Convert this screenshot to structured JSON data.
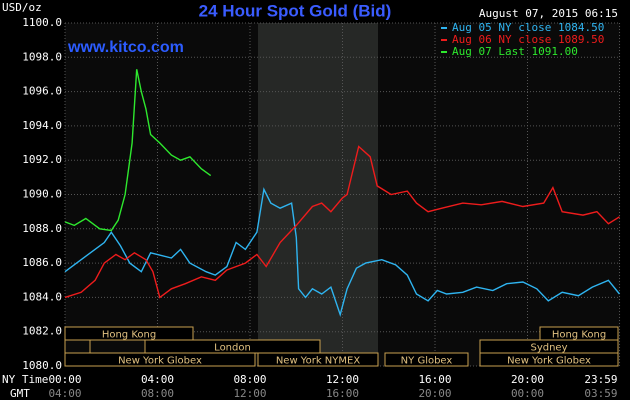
{
  "chart_data": {
    "type": "line",
    "title": "24 Hour Spot Gold (Bid)",
    "subtitle": "August 07, 2015 06:15",
    "ylabel": "USD/oz",
    "watermark": "www.kitco.com",
    "xlabel": "NY Time",
    "x2label": "GMT",
    "xlim": [
      0,
      24
    ],
    "xticks": [
      {
        "value": 0,
        "label": "00:00"
      },
      {
        "value": 4,
        "label": "04:00"
      },
      {
        "value": 8,
        "label": "08:00"
      },
      {
        "value": 12,
        "label": "12:00"
      },
      {
        "value": 16,
        "label": "16:00"
      },
      {
        "value": 20,
        "label": "20:00"
      },
      {
        "value": 23.98,
        "label": "23:59"
      }
    ],
    "x2ticks": [
      {
        "value": 0,
        "label": "04:00"
      },
      {
        "value": 4,
        "label": "08:00"
      },
      {
        "value": 8,
        "label": "12:00"
      },
      {
        "value": 12,
        "label": "16:00"
      },
      {
        "value": 16,
        "label": "20:00"
      },
      {
        "value": 20,
        "label": "00:00"
      },
      {
        "value": 23.98,
        "label": "03:59"
      }
    ],
    "ylim": [
      1080,
      1100
    ],
    "yticks": [
      {
        "value": 1080,
        "label": "1080.0"
      },
      {
        "value": 1082,
        "label": "1082.0"
      },
      {
        "value": 1084,
        "label": "1084.0"
      },
      {
        "value": 1086,
        "label": "1086.0"
      },
      {
        "value": 1088,
        "label": "1088.0"
      },
      {
        "value": 1090,
        "label": "1090.0"
      },
      {
        "value": 1092,
        "label": "1092.0"
      },
      {
        "value": 1094,
        "label": "1094.0"
      },
      {
        "value": 1096,
        "label": "1096.0"
      },
      {
        "value": 1098,
        "label": "1098.0"
      },
      {
        "value": 1100,
        "label": "1100.0"
      }
    ],
    "grid": true,
    "legend": "upper right",
    "sessions": [
      "Hong Kong",
      "Hong Kong",
      "London",
      "Sydney",
      "New York Globex",
      "New York NYMEX",
      "NY Globex",
      "New York Globex"
    ],
    "series": [
      {
        "name": "Aug 05 NY close 1084.50",
        "color": "#2fb4f0",
        "x": [
          0,
          1.1,
          1.7,
          2.0,
          2.4,
          2.8,
          3.3,
          3.7,
          4.6,
          5.0,
          5.4,
          6.1,
          6.5,
          7.0,
          7.4,
          7.8,
          8.3,
          8.6,
          8.9,
          9.3,
          9.8,
          10.0,
          10.1,
          10.4,
          10.7,
          11.1,
          11.5,
          11.9,
          12.2,
          12.6,
          13.0,
          13.7,
          14.3,
          14.8,
          15.2,
          15.7,
          16.1,
          16.5,
          17.2,
          17.8,
          18.5,
          19.1,
          19.8,
          20.4,
          20.9,
          21.5,
          22.2,
          22.8,
          23.5,
          23.98
        ],
        "values": [
          1085.5,
          1086.6,
          1087.2,
          1087.8,
          1087.0,
          1086.0,
          1085.5,
          1086.6,
          1086.3,
          1086.8,
          1086.0,
          1085.5,
          1085.3,
          1085.8,
          1087.2,
          1086.8,
          1087.8,
          1090.3,
          1089.5,
          1089.2,
          1089.5,
          1087.5,
          1084.5,
          1084.0,
          1084.5,
          1084.2,
          1084.6,
          1083.0,
          1084.5,
          1085.7,
          1086.0,
          1086.2,
          1085.9,
          1085.3,
          1084.2,
          1083.8,
          1084.4,
          1084.2,
          1084.3,
          1084.6,
          1084.4,
          1084.8,
          1084.9,
          1084.5,
          1083.8,
          1084.3,
          1084.1,
          1084.6,
          1085.0,
          1084.2
        ]
      },
      {
        "name": "Aug 06 NY close 1089.50",
        "color": "#ee1c1c",
        "x": [
          0,
          0.7,
          1.3,
          1.7,
          2.2,
          2.6,
          3.0,
          3.5,
          3.8,
          4.1,
          4.6,
          5.2,
          5.9,
          6.5,
          7.0,
          7.8,
          8.3,
          8.7,
          9.3,
          10.0,
          10.7,
          11.1,
          11.5,
          12.0,
          12.2,
          12.7,
          13.2,
          13.5,
          14.1,
          14.8,
          15.2,
          15.7,
          16.3,
          17.2,
          18.0,
          18.9,
          19.8,
          20.7,
          21.1,
          21.5,
          22.4,
          23.0,
          23.5,
          23.98
        ],
        "values": [
          1084.0,
          1084.3,
          1085.0,
          1086.0,
          1086.5,
          1086.2,
          1086.6,
          1086.2,
          1085.5,
          1084.0,
          1084.5,
          1084.8,
          1085.2,
          1085.0,
          1085.6,
          1086.0,
          1086.5,
          1085.8,
          1087.2,
          1088.2,
          1089.3,
          1089.5,
          1089.0,
          1089.8,
          1090.0,
          1092.8,
          1092.2,
          1090.5,
          1090.0,
          1090.2,
          1089.5,
          1089.0,
          1089.2,
          1089.5,
          1089.4,
          1089.6,
          1089.3,
          1089.5,
          1090.4,
          1089.0,
          1088.8,
          1089.0,
          1088.3,
          1088.7
        ]
      },
      {
        "name": "Aug 07 Last 1091.00",
        "color": "#2ee82e",
        "x": [
          0,
          0.4,
          0.9,
          1.5,
          2.0,
          2.3,
          2.6,
          2.9,
          3.1,
          3.3,
          3.5,
          3.7,
          4.1,
          4.6,
          5.0,
          5.4,
          5.9,
          6.3
        ],
        "values": [
          1088.4,
          1088.2,
          1088.6,
          1088.0,
          1087.9,
          1088.5,
          1090.0,
          1093.0,
          1097.3,
          1096.0,
          1095.0,
          1093.5,
          1093.0,
          1092.3,
          1092.0,
          1092.2,
          1091.5,
          1091.1
        ]
      }
    ]
  }
}
